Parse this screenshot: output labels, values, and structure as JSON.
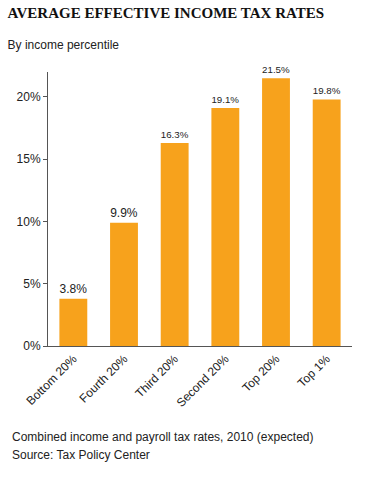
{
  "chart_data": {
    "type": "bar",
    "title": "AVERAGE EFFECTIVE INCOME TAX RATES",
    "subtitle": "By income percentile",
    "annotations": [
      "Combined income and payroll tax rates, 2010 (expected)",
      "Source: Tax Policy Center"
    ],
    "categories": [
      "Bottom 20%",
      "Fourth 20%",
      "Third 20%",
      "Second 20%",
      "Top 20%",
      "Top 1%"
    ],
    "values": [
      3.8,
      9.9,
      16.3,
      19.1,
      21.5,
      19.8
    ],
    "value_labels": [
      "3.8%",
      "9.9%",
      "16.3%",
      "19.1%",
      "21.5%",
      "19.8%"
    ],
    "color": "#f7a21c",
    "ylim": [
      0,
      22
    ],
    "yticks": [
      {
        "value": 0,
        "label": "0%"
      },
      {
        "value": 5,
        "label": "5%"
      },
      {
        "value": 10,
        "label": "10%"
      },
      {
        "value": 15,
        "label": "15%"
      },
      {
        "value": 20,
        "label": "20%"
      }
    ],
    "grid": false,
    "data_labels": true
  }
}
